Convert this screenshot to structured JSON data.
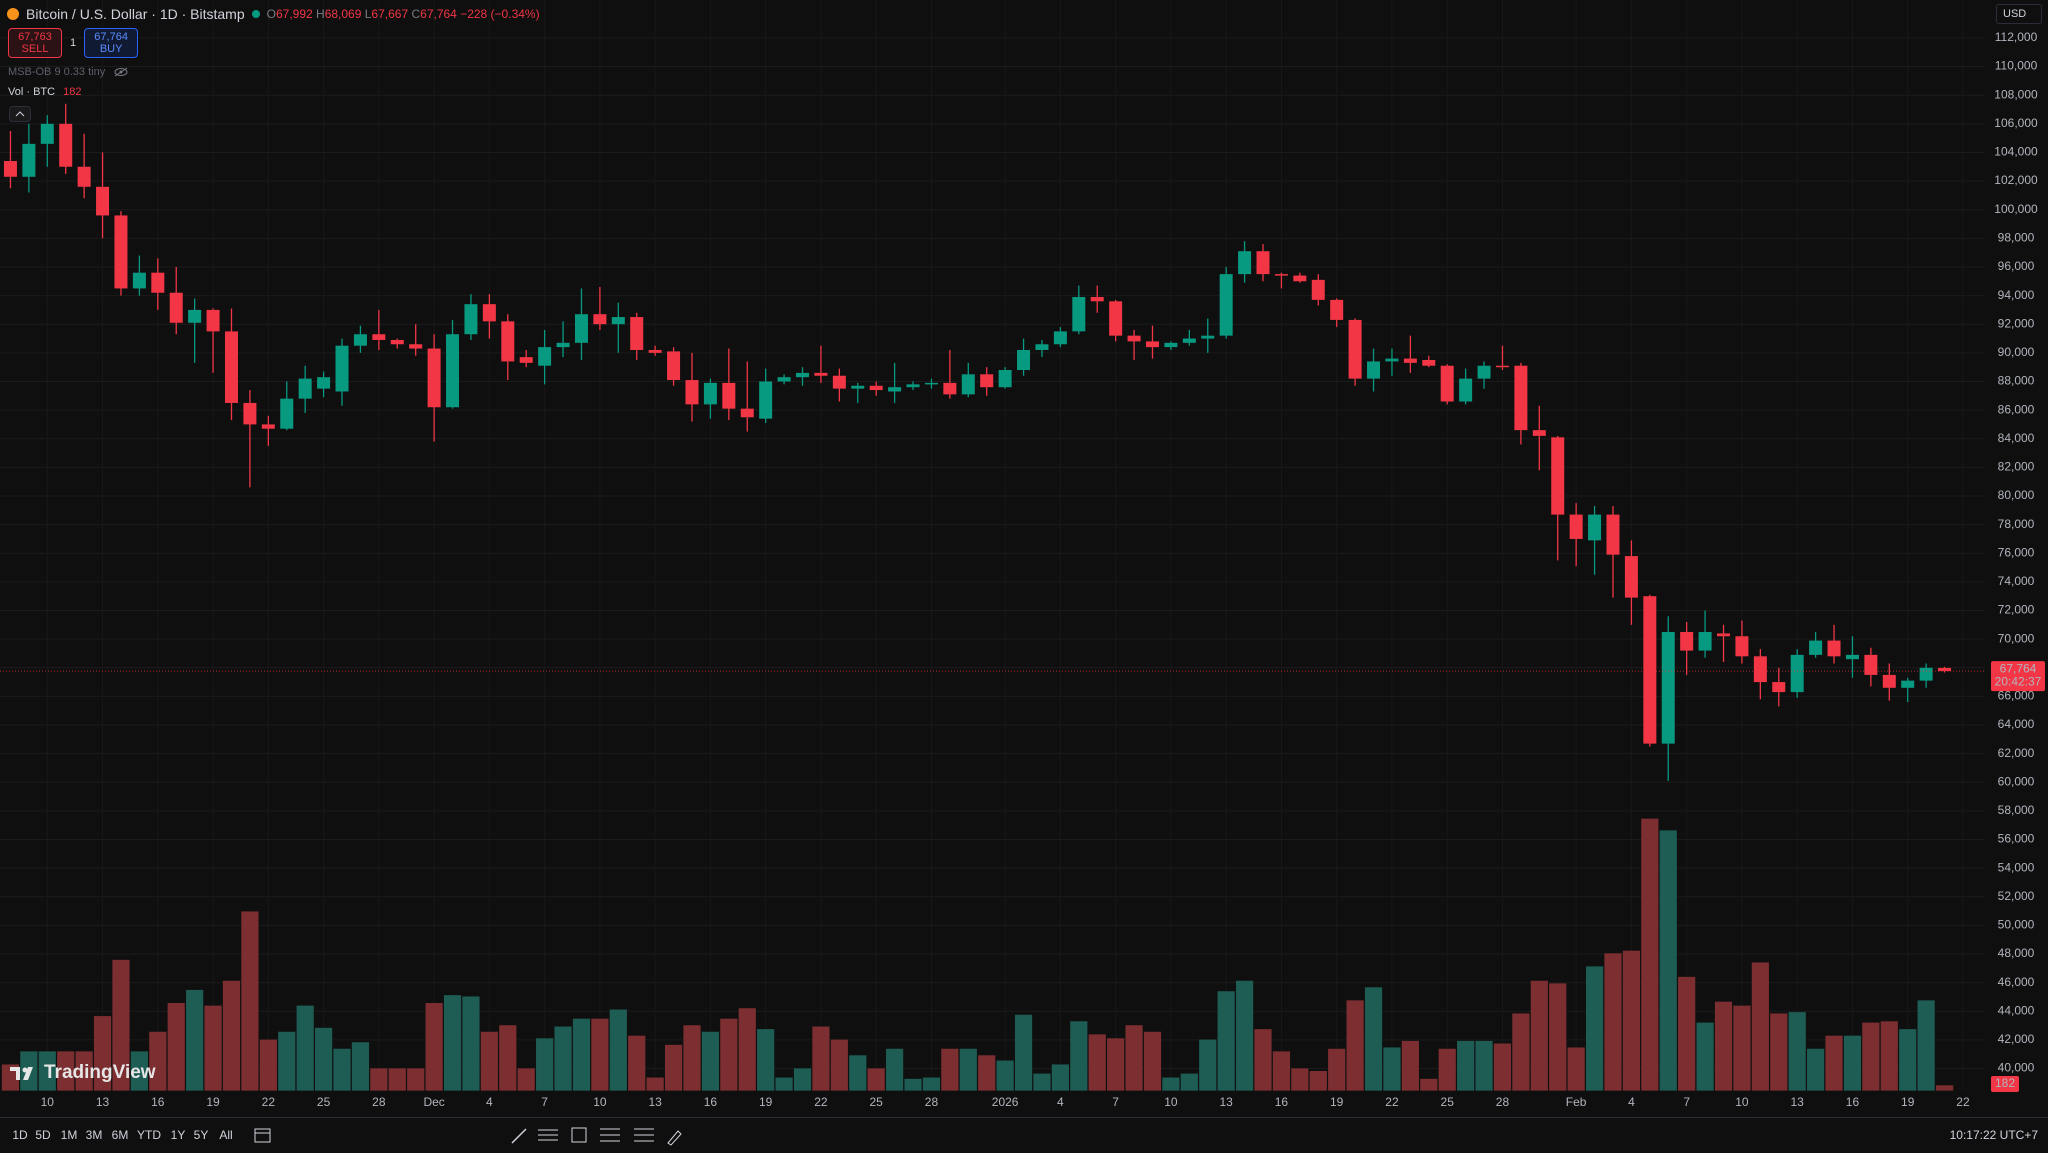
{
  "header": {
    "symbol": "Bitcoin / U.S. Dollar · 1D · Bitstamp",
    "ohlc": [
      [
        "O",
        "67,992"
      ],
      [
        "H",
        "68,069"
      ],
      [
        "L",
        "67,667"
      ],
      [
        "C",
        "67,764"
      ]
    ],
    "change": "−228 (−0.34%)"
  },
  "orders": {
    "sell_price": "67,763",
    "sell": "SELL",
    "qty": "1",
    "buy_price": "67,764",
    "buy": "BUY"
  },
  "indicator": "MSB-OB 9 0.33 tiny",
  "currency": "USD",
  "logo": "TradingView",
  "timeframes": [
    "1D",
    "5D",
    "1M",
    "3M",
    "6M",
    "YTD",
    "1Y",
    "5Y",
    "All"
  ],
  "clock": "10:17:22 UTC+7",
  "chart_data": {
    "type": "candlestick",
    "categories": [
      null,
      null,
      "10",
      null,
      null,
      "13",
      null,
      null,
      "16",
      null,
      null,
      "19",
      null,
      null,
      "22",
      null,
      null,
      "25",
      null,
      null,
      "28",
      null,
      null,
      "Dec",
      null,
      null,
      "4",
      null,
      null,
      "7",
      null,
      null,
      "10",
      null,
      null,
      "13",
      null,
      null,
      "16",
      null,
      null,
      "19",
      null,
      null,
      "22",
      null,
      null,
      "25",
      null,
      null,
      "28",
      null,
      null,
      null,
      "2026",
      null,
      null,
      "4",
      null,
      null,
      "7",
      null,
      null,
      "10",
      null,
      null,
      "13",
      null,
      null,
      "16",
      null,
      null,
      "19",
      null,
      null,
      "22",
      null,
      null,
      "25",
      null,
      null,
      "28",
      null,
      null,
      null,
      "Feb",
      null,
      null,
      "4",
      null,
      null,
      "7",
      null,
      null,
      "10",
      null,
      null,
      "13",
      null,
      null,
      "16",
      null,
      null,
      "19",
      null,
      null,
      "22"
    ],
    "open": [
      103400,
      102300,
      104600,
      106000,
      103000,
      101600,
      99600,
      94500,
      95600,
      94200,
      92100,
      93000,
      91500,
      86500,
      85000,
      84700,
      86800,
      87500,
      87300,
      90500,
      91300,
      90900,
      90600,
      90300,
      86200,
      91300,
      93400,
      92200,
      89700,
      89100,
      90400,
      90700,
      92700,
      92000,
      92500,
      90200,
      90100,
      88100,
      86400,
      87900,
      86100,
      85400,
      88000,
      88300,
      88600,
      88400,
      87500,
      87700,
      87300,
      87600,
      87800,
      87900,
      87100,
      88500,
      87600,
      88800,
      90200,
      90600,
      91500,
      93900,
      93600,
      91200,
      90800,
      90400,
      90700,
      91000,
      91200,
      95500,
      97100,
      95500,
      95400,
      95100,
      93700,
      92300,
      88200,
      89400,
      89600,
      89500,
      89100,
      86600,
      88200,
      89100,
      89100,
      84600,
      84100,
      78700,
      76900,
      78700,
      75800,
      73000,
      62700,
      70500,
      69200,
      70400,
      70200,
      68800,
      67000,
      66300,
      68900,
      69900,
      68600,
      68900,
      67500,
      66600,
      67100,
      67992,
      null
    ],
    "high": [
      105500,
      106000,
      106600,
      107400,
      105300,
      104000,
      99900,
      96800,
      96600,
      96000,
      93800,
      93100,
      93100,
      87400,
      85600,
      88000,
      89100,
      88700,
      91000,
      91900,
      93000,
      91000,
      92000,
      91300,
      92300,
      94100,
      94100,
      92700,
      90200,
      91600,
      92200,
      94500,
      94600,
      93500,
      92800,
      90500,
      90400,
      90000,
      88200,
      90300,
      89400,
      88900,
      88500,
      89000,
      90500,
      88900,
      87900,
      88000,
      89300,
      88000,
      88200,
      90200,
      89300,
      89000,
      89000,
      91000,
      90900,
      91800,
      94700,
      94700,
      93700,
      91600,
      91900,
      90800,
      91600,
      92400,
      96000,
      97800,
      97600,
      95600,
      95600,
      95500,
      93800,
      92400,
      90300,
      90300,
      91200,
      89800,
      89200,
      88900,
      89400,
      90500,
      89300,
      86300,
      84200,
      79500,
      79300,
      79300,
      76900,
      73100,
      71600,
      71200,
      72000,
      71000,
      71300,
      69300,
      68000,
      69300,
      70500,
      71000,
      70200,
      69400,
      68300,
      67300,
      68300,
      68069,
      null
    ],
    "low": [
      101500,
      101200,
      103000,
      102500,
      100800,
      98000,
      94000,
      94000,
      93000,
      91300,
      89300,
      88600,
      85300,
      80600,
      83500,
      84600,
      85800,
      86900,
      86300,
      90000,
      90200,
      90300,
      89800,
      83800,
      86100,
      90900,
      91000,
      88100,
      89000,
      87800,
      89700,
      89500,
      91600,
      90000,
      89500,
      89800,
      87700,
      85200,
      85400,
      85300,
      84500,
      85100,
      87800,
      87700,
      87900,
      86600,
      86500,
      87000,
      86500,
      87400,
      87500,
      86800,
      86900,
      87000,
      87500,
      88400,
      89700,
      90400,
      91300,
      92800,
      90800,
      89500,
      89600,
      90200,
      90500,
      90000,
      91000,
      94900,
      95000,
      94500,
      94900,
      93300,
      91800,
      87700,
      87300,
      88400,
      88600,
      89000,
      86400,
      86400,
      87500,
      88800,
      83600,
      81800,
      75500,
      75100,
      74500,
      72900,
      71000,
      62500,
      60100,
      67500,
      68700,
      68400,
      68300,
      65800,
      65300,
      65900,
      68700,
      68300,
      67300,
      66700,
      65700,
      65600,
      66600,
      67667,
      null
    ],
    "close": [
      102300,
      104600,
      106000,
      103000,
      101600,
      99600,
      94500,
      95600,
      94200,
      92100,
      93000,
      91500,
      86500,
      85000,
      84700,
      86800,
      88200,
      88300,
      90500,
      91300,
      90900,
      90600,
      90300,
      86200,
      91300,
      93400,
      92200,
      89400,
      89300,
      90400,
      90700,
      92700,
      92000,
      92500,
      90200,
      90000,
      88100,
      86400,
      87900,
      86100,
      85500,
      88000,
      88300,
      88600,
      88400,
      87500,
      87700,
      87400,
      87600,
      87800,
      87900,
      87100,
      88500,
      87600,
      88800,
      90200,
      90600,
      91500,
      93900,
      93600,
      91200,
      90800,
      90400,
      90700,
      91000,
      91200,
      95500,
      97100,
      95500,
      95400,
      95000,
      93700,
      92300,
      88200,
      89400,
      89600,
      89300,
      89100,
      86600,
      88200,
      89100,
      89000,
      84600,
      84200,
      78700,
      77000,
      78700,
      75900,
      72900,
      62700,
      70500,
      69200,
      70500,
      70200,
      68800,
      67000,
      66300,
      68900,
      69900,
      68800,
      68900,
      67500,
      66600,
      67100,
      68000,
      67764,
      null
    ],
    "volume": [
      900,
      1350,
      1350,
      1350,
      1350,
      2565,
      4500,
      1350,
      2025,
      3015,
      3465,
      2925,
      3780,
      6165,
      1755,
      2025,
      2925,
      2160,
      1440,
      1665,
      765,
      765,
      765,
      3015,
      3285,
      3240,
      2025,
      2250,
      765,
      1800,
      2205,
      2475,
      2475,
      2790,
      1890,
      450,
      1575,
      2250,
      2025,
      2475,
      2835,
      2115,
      450,
      765,
      2205,
      1755,
      1215,
      765,
      1440,
      405,
      450,
      1440,
      1440,
      1215,
      1035,
      2610,
      585,
      900,
      2385,
      1935,
      1800,
      2250,
      2025,
      450,
      585,
      1755,
      3420,
      3780,
      2115,
      1350,
      765,
      675,
      1440,
      3105,
      3555,
      1485,
      1710,
      405,
      1440,
      1710,
      1710,
      1620,
      2655,
      3780,
      3690,
      1485,
      4275,
      4725,
      4815,
      9360,
      8955,
      3915,
      2340,
      3060,
      2925,
      4410,
      2655,
      2700,
      1440,
      1890,
      1890,
      2340,
      2385,
      2115,
      3105,
      182,
      null
    ],
    "volume_name": "Vol · BTC",
    "volume_label": "182",
    "last_price_label": "67,764",
    "countdown": "20:42:37",
    "up_color": "#089981",
    "down_color": "#f23645",
    "volume_up_color": "#1d5d54",
    "volume_down_color": "#7c2e31",
    "ylim": [
      38460,
      114650
    ],
    "yticks": [
      {
        "value": 40000,
        "label": "40,000"
      },
      {
        "value": 42000,
        "label": "42,000"
      },
      {
        "value": 44000,
        "label": "44,000"
      },
      {
        "value": 46000,
        "label": "46,000"
      },
      {
        "value": 48000,
        "label": "48,000"
      },
      {
        "value": 50000,
        "label": "50,000"
      },
      {
        "value": 52000,
        "label": "52,000"
      },
      {
        "value": 54000,
        "label": "54,000"
      },
      {
        "value": 56000,
        "label": "56,000"
      },
      {
        "value": 58000,
        "label": "58,000"
      },
      {
        "value": 60000,
        "label": "60,000"
      },
      {
        "value": 62000,
        "label": "62,000"
      },
      {
        "value": 64000,
        "label": "64,000"
      },
      {
        "value": 66000,
        "label": "66,000"
      },
      {
        "value": 68000,
        "label": "68,000"
      },
      {
        "value": 70000,
        "label": "70,000"
      },
      {
        "value": 72000,
        "label": "72,000"
      },
      {
        "value": 74000,
        "label": "74,000"
      },
      {
        "value": 76000,
        "label": "76,000"
      },
      {
        "value": 78000,
        "label": "78,000"
      },
      {
        "value": 80000,
        "label": "80,000"
      },
      {
        "value": 82000,
        "label": "82,000"
      },
      {
        "value": 84000,
        "label": "84,000"
      },
      {
        "value": 86000,
        "label": "86,000"
      },
      {
        "value": 88000,
        "label": "88,000"
      },
      {
        "value": 90000,
        "label": "90,000"
      },
      {
        "value": 92000,
        "label": "92,000"
      },
      {
        "value": 94000,
        "label": "94,000"
      },
      {
        "value": 96000,
        "label": "96,000"
      },
      {
        "value": 98000,
        "label": "98,000"
      },
      {
        "value": 100000,
        "label": "100,000"
      },
      {
        "value": 102000,
        "label": "102,000"
      },
      {
        "value": 104000,
        "label": "104,000"
      },
      {
        "value": 106000,
        "label": "106,000"
      },
      {
        "value": 108000,
        "label": "108,000"
      },
      {
        "value": 110000,
        "label": "110,000"
      },
      {
        "value": 112000,
        "label": "112,000"
      }
    ],
    "grid": true
  }
}
